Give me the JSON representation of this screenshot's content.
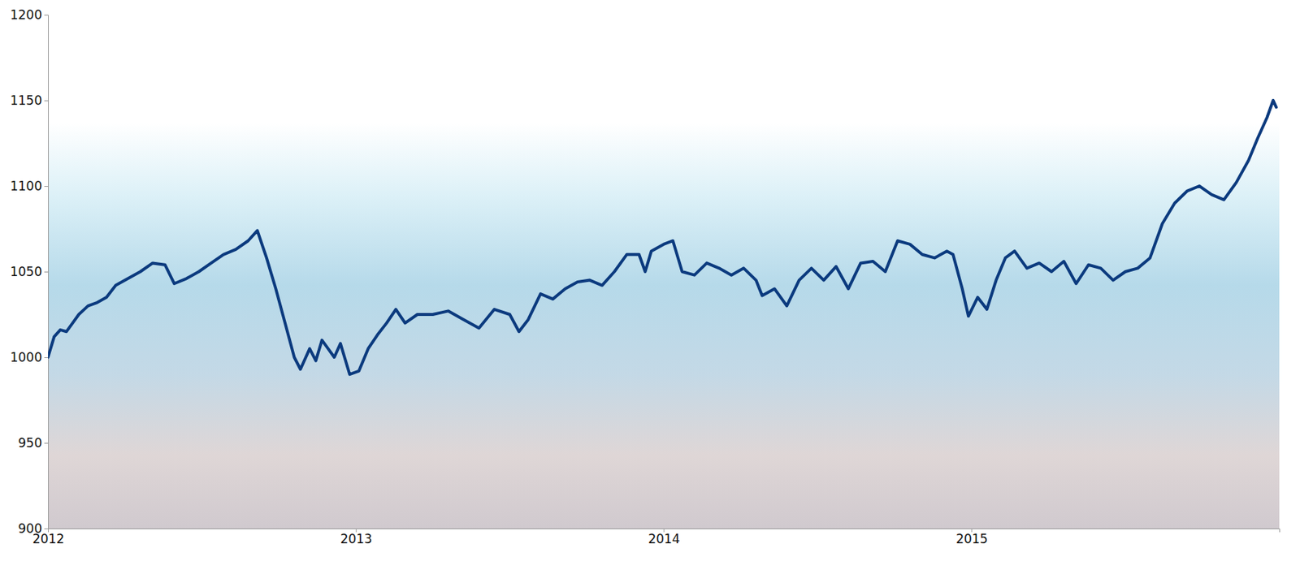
{
  "chart_data": {
    "type": "line",
    "color": "#0b3a7e",
    "x": [
      2012.0,
      2012.02,
      2012.04,
      2012.06,
      2012.08,
      2012.1,
      2012.13,
      2012.16,
      2012.19,
      2012.22,
      2012.26,
      2012.3,
      2012.34,
      2012.38,
      2012.41,
      2012.45,
      2012.49,
      2012.53,
      2012.57,
      2012.61,
      2012.65,
      2012.68,
      2012.71,
      2012.74,
      2012.77,
      2012.8,
      2012.82,
      2012.85,
      2012.87,
      2012.89,
      2012.91,
      2012.93,
      2012.95,
      2012.98,
      2013.01,
      2013.04,
      2013.07,
      2013.1,
      2013.13,
      2013.16,
      2013.2,
      2013.25,
      2013.3,
      2013.35,
      2013.4,
      2013.45,
      2013.5,
      2013.53,
      2013.56,
      2013.6,
      2013.64,
      2013.68,
      2013.72,
      2013.76,
      2013.8,
      2013.84,
      2013.88,
      2013.92,
      2013.94,
      2013.96,
      2014.0,
      2014.03,
      2014.06,
      2014.1,
      2014.14,
      2014.18,
      2014.22,
      2014.26,
      2014.3,
      2014.32,
      2014.36,
      2014.4,
      2014.44,
      2014.48,
      2014.52,
      2014.56,
      2014.6,
      2014.64,
      2014.68,
      2014.72,
      2014.76,
      2014.8,
      2014.84,
      2014.88,
      2014.92,
      2014.94,
      2014.97,
      2014.99,
      2015.02,
      2015.05,
      2015.08,
      2015.11,
      2015.14,
      2015.18,
      2015.22,
      2015.26,
      2015.3,
      2015.34,
      2015.38,
      2015.42,
      2015.46,
      2015.5,
      2015.54,
      2015.58,
      2015.62,
      2015.66,
      2015.7,
      2015.74,
      2015.78,
      2015.82,
      2015.86,
      2015.9,
      2015.93,
      2015.96,
      2015.98,
      2015.99
    ],
    "values": [
      1000,
      1012,
      1016,
      1015,
      1020,
      1025,
      1030,
      1032,
      1035,
      1042,
      1046,
      1050,
      1055,
      1054,
      1043,
      1046,
      1050,
      1055,
      1060,
      1063,
      1068,
      1074,
      1058,
      1040,
      1020,
      1000,
      993,
      1005,
      998,
      1010,
      1005,
      1000,
      1008,
      990,
      992,
      1005,
      1013,
      1020,
      1028,
      1020,
      1025,
      1025,
      1027,
      1022,
      1017,
      1028,
      1025,
      1015,
      1022,
      1037,
      1034,
      1040,
      1044,
      1045,
      1042,
      1050,
      1060,
      1060,
      1050,
      1062,
      1066,
      1068,
      1050,
      1048,
      1055,
      1052,
      1048,
      1052,
      1045,
      1036,
      1040,
      1030,
      1045,
      1052,
      1045,
      1053,
      1040,
      1055,
      1056,
      1050,
      1068,
      1066,
      1060,
      1058,
      1062,
      1060,
      1040,
      1024,
      1035,
      1028,
      1045,
      1058,
      1062,
      1052,
      1055,
      1050,
      1056,
      1043,
      1054,
      1052,
      1045,
      1050,
      1052,
      1058,
      1078,
      1090,
      1097,
      1100,
      1095,
      1092,
      1102,
      1115,
      1128,
      1140,
      1150,
      1146
    ],
    "xlim": [
      2012,
      2016
    ],
    "xticks": [
      2012,
      2013,
      2014,
      2015
    ],
    "ylim": [
      900,
      1200
    ],
    "yticks": [
      900,
      950,
      1000,
      1050,
      1100,
      1150,
      1200
    ],
    "grid": false
  }
}
